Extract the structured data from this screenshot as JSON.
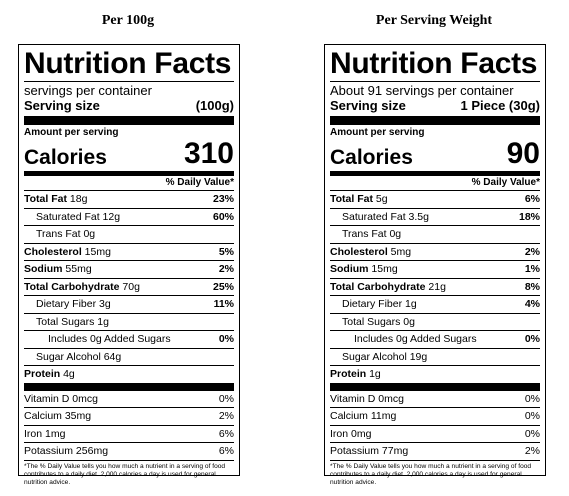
{
  "panels": [
    {
      "heading": "Per 100g",
      "title": "Nutrition Facts",
      "servings": "servings per container",
      "serving_size_label": "Serving size",
      "serving_size_value": "(100g)",
      "amount_label": "Amount per serving",
      "calories_label": "Calories",
      "calories_value": "310",
      "dv_header": "% Daily Value*",
      "nutrients": [
        {
          "bold": "Total Fat",
          "rest": " 18g",
          "pct": "23%",
          "indent": 0
        },
        {
          "bold": "",
          "rest": "Saturated Fat 12g",
          "pct": "60%",
          "indent": 1
        },
        {
          "bold": "",
          "rest": "Trans Fat 0g",
          "pct": "",
          "indent": 1
        },
        {
          "bold": "Cholesterol",
          "rest": " 15mg",
          "pct": "5%",
          "indent": 0
        },
        {
          "bold": "Sodium",
          "rest": " 55mg",
          "pct": "2%",
          "indent": 0
        },
        {
          "bold": "Total Carbohydrate",
          "rest": " 70g",
          "pct": "25%",
          "indent": 0
        },
        {
          "bold": "",
          "rest": "Dietary Fiber 3g",
          "pct": "11%",
          "indent": 1
        },
        {
          "bold": "",
          "rest": "Total Sugars 1g",
          "pct": "",
          "indent": 1
        },
        {
          "bold": "",
          "rest": "Includes 0g Added Sugars",
          "pct": "0%",
          "indent": 2
        },
        {
          "bold": "",
          "rest": "Sugar Alcohol 64g",
          "pct": "",
          "indent": 1
        },
        {
          "bold": "Protein",
          "rest": " 4g",
          "pct": "",
          "indent": 0
        }
      ],
      "vitamins": [
        {
          "name": "Vitamin D 0mcg",
          "pct": "0%"
        },
        {
          "name": "Calcium 35mg",
          "pct": "2%"
        },
        {
          "name": "Iron 1mg",
          "pct": "6%"
        },
        {
          "name": "Potassium 256mg",
          "pct": "6%"
        }
      ],
      "footnote": "*The % Daily Value tells you how much a nutrient in a serving of food contributes to a daily diet. 2,000 calories a day is used for general nutrition advice."
    },
    {
      "heading": "Per Serving Weight",
      "title": "Nutrition Facts",
      "servings": "About 91 servings per container",
      "serving_size_label": "Serving size",
      "serving_size_value": "1 Piece (30g)",
      "amount_label": "Amount per serving",
      "calories_label": "Calories",
      "calories_value": "90",
      "dv_header": "% Daily Value*",
      "nutrients": [
        {
          "bold": "Total Fat",
          "rest": " 5g",
          "pct": "6%",
          "indent": 0
        },
        {
          "bold": "",
          "rest": "Saturated Fat 3.5g",
          "pct": "18%",
          "indent": 1
        },
        {
          "bold": "",
          "rest": "Trans Fat 0g",
          "pct": "",
          "indent": 1
        },
        {
          "bold": "Cholesterol",
          "rest": " 5mg",
          "pct": "2%",
          "indent": 0
        },
        {
          "bold": "Sodium",
          "rest": " 15mg",
          "pct": "1%",
          "indent": 0
        },
        {
          "bold": "Total Carbohydrate",
          "rest": " 21g",
          "pct": "8%",
          "indent": 0
        },
        {
          "bold": "",
          "rest": "Dietary Fiber 1g",
          "pct": "4%",
          "indent": 1
        },
        {
          "bold": "",
          "rest": "Total Sugars 0g",
          "pct": "",
          "indent": 1
        },
        {
          "bold": "",
          "rest": "Includes 0g Added Sugars",
          "pct": "0%",
          "indent": 2
        },
        {
          "bold": "",
          "rest": "Sugar Alcohol 19g",
          "pct": "",
          "indent": 1
        },
        {
          "bold": "Protein",
          "rest": " 1g",
          "pct": "",
          "indent": 0
        }
      ],
      "vitamins": [
        {
          "name": "Vitamin D 0mcg",
          "pct": "0%"
        },
        {
          "name": "Calcium 11mg",
          "pct": "0%"
        },
        {
          "name": "Iron 0mg",
          "pct": "0%"
        },
        {
          "name": "Potassium 77mg",
          "pct": "2%"
        }
      ],
      "footnote": "*The % Daily Value tells you how much a nutrient in a serving of food contributes to a daily diet. 2,000 calories a day is used for general nutrition advice."
    }
  ]
}
